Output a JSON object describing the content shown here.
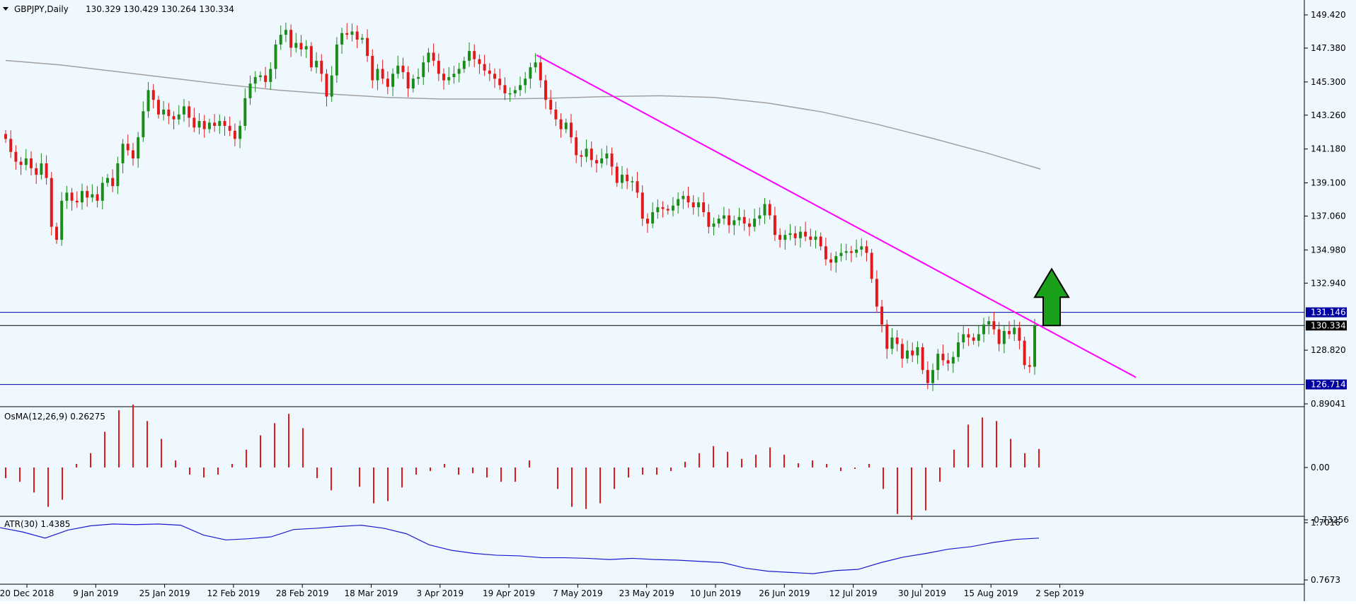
{
  "header": {
    "symbol_title": "GBPJPY,Daily",
    "ohlc": "130.329 130.429 130.264 130.334"
  },
  "osma": {
    "label": "OsMA(12,26,9) 0.26275",
    "ticks": [
      "0.89041",
      "0.00",
      "-0.73256"
    ]
  },
  "atr": {
    "label": "ATR(30) 1.4385",
    "ticks": [
      "1.7016",
      "0.7673"
    ]
  },
  "price_ticks": [
    "149.420",
    "147.380",
    "145.300",
    "143.260",
    "141.180",
    "139.100",
    "137.060",
    "134.980",
    "132.940",
    "128.820"
  ],
  "price_labels": {
    "resistance": "131.146",
    "current": "130.334",
    "support": "126.714"
  },
  "colors": {
    "background": "#f0f8ff",
    "bull_candle": "#1a8c1a",
    "bear_candle": "#e01a1a",
    "ma_line": "#a0a0a0",
    "trendline": "#ff00ff",
    "horizontal_levels": "#0000a0",
    "osma_bars": "#e01a1a",
    "atr_line": "#1a1acc",
    "arrow": "#1aa01a"
  },
  "chart_data": {
    "type": "candlestick",
    "title": "GBPJPY,Daily",
    "x_tick_labels": [
      "20 Dec 2018",
      "9 Jan 2019",
      "25 Jan 2019",
      "12 Feb 2019",
      "28 Feb 2019",
      "18 Mar 2019",
      "3 Apr 2019",
      "19 Apr 2019",
      "7 May 2019",
      "23 May 2019",
      "10 Jun 2019",
      "26 Jun 2019",
      "12 Jul 2019",
      "30 Jul 2019",
      "15 Aug 2019",
      "2 Sep 2019"
    ],
    "y_range": [
      126.0,
      149.9
    ],
    "closes": [
      141.8,
      141.0,
      140.4,
      140.2,
      140.6,
      140.0,
      139.6,
      140.3,
      139.4,
      136.4,
      135.6,
      138.0,
      138.5,
      138.0,
      137.9,
      138.6,
      138.2,
      138.4,
      138.0,
      139.1,
      139.4,
      138.9,
      140.3,
      141.5,
      141.1,
      140.6,
      141.9,
      143.5,
      144.8,
      144.2,
      143.3,
      143.6,
      143.2,
      143.0,
      143.3,
      143.8,
      143.1,
      142.5,
      142.9,
      142.4,
      142.8,
      142.6,
      142.9,
      142.6,
      142.3,
      141.8,
      142.6,
      144.3,
      145.2,
      145.6,
      145.7,
      145.3,
      146.1,
      147.6,
      148.2,
      148.5,
      147.4,
      147.7,
      147.3,
      147.5,
      146.2,
      146.6,
      145.8,
      144.4,
      145.7,
      147.6,
      148.3,
      148.2,
      148.4,
      147.9,
      148.0,
      146.9,
      145.4,
      146.1,
      145.5,
      145.0,
      145.8,
      146.3,
      145.9,
      144.9,
      145.5,
      145.6,
      146.5,
      147.1,
      146.6,
      145.8,
      145.4,
      145.6,
      145.8,
      146.1,
      146.6,
      147.2,
      146.7,
      146.4,
      146.0,
      145.8,
      145.5,
      145.1,
      144.6,
      144.6,
      144.8,
      145.1,
      145.5,
      146.2,
      146.5,
      145.4,
      144.2,
      143.6,
      143.0,
      142.4,
      142.8,
      141.9,
      140.8,
      140.7,
      141.2,
      140.5,
      140.3,
      140.6,
      140.9,
      140.1,
      139.1,
      139.6,
      139.2,
      139.2,
      138.5,
      136.9,
      136.6,
      137.3,
      137.6,
      137.5,
      137.4,
      137.7,
      138.1,
      138.3,
      137.9,
      137.6,
      137.9,
      137.3,
      136.4,
      136.6,
      136.9,
      137.1,
      136.5,
      136.8,
      137.0,
      136.6,
      136.4,
      136.9,
      137.1,
      137.8,
      137.1,
      135.9,
      135.6,
      135.9,
      136.0,
      135.7,
      136.1,
      135.8,
      135.6,
      135.8,
      135.2,
      134.4,
      134.2,
      134.6,
      134.8,
      134.9,
      134.8,
      135.0,
      135.2,
      134.8,
      133.2,
      131.5,
      130.4,
      128.9,
      129.6,
      129.2,
      128.3,
      128.8,
      128.5,
      129.0,
      127.6,
      126.8,
      127.6,
      128.6,
      128.2,
      128.0,
      128.4,
      129.3,
      129.8,
      129.6,
      129.4,
      129.8,
      130.4,
      130.6,
      130.1,
      129.2,
      130.0,
      129.8,
      130.2,
      129.4,
      127.9,
      127.8,
      130.334
    ],
    "ma200": [
      146.62,
      146.35,
      145.95,
      145.55,
      145.15,
      144.8,
      144.55,
      144.35,
      144.25,
      144.25,
      144.3,
      144.4,
      144.45,
      144.35,
      144.0,
      143.45,
      142.7,
      141.85,
      140.95,
      139.95
    ],
    "osma_values": [
      -0.15,
      -0.2,
      -0.35,
      -0.55,
      -0.45,
      0.05,
      0.2,
      0.5,
      0.8,
      0.88,
      0.65,
      0.4,
      0.1,
      -0.1,
      -0.14,
      -0.1,
      0.05,
      0.25,
      0.45,
      0.62,
      0.75,
      0.55,
      -0.15,
      -0.32,
      0.0,
      -0.27,
      -0.5,
      -0.47,
      -0.28,
      -0.1,
      -0.05,
      0.05,
      -0.1,
      -0.08,
      -0.14,
      -0.2,
      -0.2,
      0.1,
      0.0,
      -0.3,
      -0.55,
      -0.58,
      -0.5,
      -0.3,
      -0.14,
      -0.1,
      -0.1,
      -0.05,
      0.08,
      0.2,
      0.3,
      0.22,
      0.12,
      0.18,
      0.28,
      0.18,
      0.06,
      0.1,
      0.05,
      -0.05,
      -0.02,
      0.05,
      -0.3,
      -0.65,
      -0.73,
      -0.6,
      -0.2,
      0.25,
      0.6,
      0.7,
      0.65,
      0.4,
      0.2,
      0.26
    ],
    "atr_values": [
      1.62,
      1.55,
      1.45,
      1.58,
      1.65,
      1.68,
      1.67,
      1.68,
      1.66,
      1.5,
      1.42,
      1.44,
      1.47,
      1.59,
      1.61,
      1.64,
      1.66,
      1.61,
      1.52,
      1.34,
      1.25,
      1.2,
      1.17,
      1.16,
      1.13,
      1.13,
      1.12,
      1.1,
      1.12,
      1.1,
      1.09,
      1.07,
      1.05,
      0.96,
      0.91,
      0.89,
      0.87,
      0.92,
      0.94,
      1.05,
      1.14,
      1.2,
      1.27,
      1.31,
      1.38,
      1.43,
      1.45
    ],
    "levels": {
      "resistance": 131.146,
      "current": 130.334,
      "support": 126.714
    },
    "trendline": {
      "from_label": "7 May 2019",
      "from_value": 146.95,
      "to_value": 127.15
    },
    "annotation": "up-arrow"
  }
}
